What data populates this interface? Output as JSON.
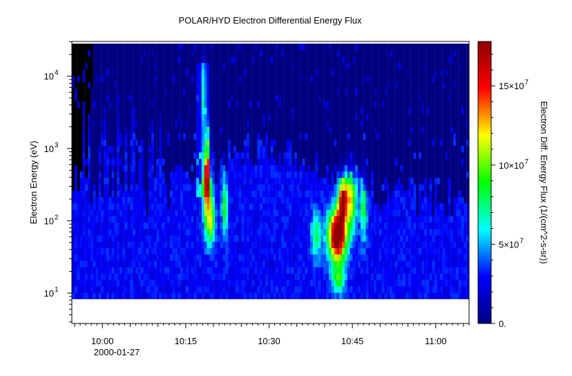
{
  "chart_data": {
    "type": "heatmap",
    "title": "POLAR/HYD  Electron Differential Energy Flux",
    "ylabel": "Electron Energy (eV)",
    "colorbar_label": "Electron Diff. Energy Flux (1/(cm^2-s-sr))",
    "xlabel": "",
    "x_date_label": "2000-01-27",
    "x_ticks": [
      "10:00",
      "10:15",
      "10:30",
      "10:45",
      "11:00"
    ],
    "x_tick_minutes": [
      0,
      15,
      30,
      45,
      60
    ],
    "x_range_minutes": [
      -5.5,
      66.0
    ],
    "y_scale": "log",
    "y_ticks": [
      {
        "value": 10,
        "base": "10",
        "exp": "1"
      },
      {
        "value": 100,
        "base": "10",
        "exp": "2"
      },
      {
        "value": 1000,
        "base": "10",
        "exp": "3"
      },
      {
        "value": 10000,
        "base": "10",
        "exp": "4"
      }
    ],
    "y_range_log10": [
      0.58,
      4.48
    ],
    "data_energy_range_log10": [
      0.92,
      4.45
    ],
    "colorbar_ticks": [
      {
        "value": 0,
        "label": "0."
      },
      {
        "value": 50000000,
        "label": "5×10",
        "exp": "7"
      },
      {
        "value": 100000000,
        "label": "10×10",
        "exp": "7"
      },
      {
        "value": 150000000,
        "label": "15×10",
        "exp": "7"
      }
    ],
    "colorbar_range": [
      0,
      178000000
    ],
    "colormap": [
      "#000080",
      "#0000ff",
      "#00ffff",
      "#00ff00",
      "#ffff00",
      "#ff0000",
      "#8b0000"
    ],
    "features": [
      {
        "time_minutes": 18.8,
        "energy_log10": 2.55,
        "peak_flux": 120000000,
        "half_width_minutes": 0.7,
        "energy_spread_log10": 0.55
      },
      {
        "time_minutes": 19.5,
        "energy_log10": 2.0,
        "peak_flux": 70000000,
        "half_width_minutes": 0.8,
        "energy_spread_log10": 0.35
      },
      {
        "time_minutes": 18.2,
        "energy_log10": 3.8,
        "peak_flux": 45000000,
        "half_width_minutes": 0.4,
        "energy_spread_log10": 0.5
      },
      {
        "time_minutes": 22.0,
        "energy_log10": 2.2,
        "peak_flux": 65000000,
        "half_width_minutes": 0.5,
        "energy_spread_log10": 0.4
      },
      {
        "time_minutes": 38.5,
        "energy_log10": 1.8,
        "peak_flux": 55000000,
        "half_width_minutes": 0.9,
        "energy_spread_log10": 0.3
      },
      {
        "time_minutes": 42.3,
        "energy_log10": 1.8,
        "peak_flux": 178000000,
        "half_width_minutes": 1.6,
        "energy_spread_log10": 0.35
      },
      {
        "time_minutes": 43.3,
        "energy_log10": 2.3,
        "peak_flux": 140000000,
        "half_width_minutes": 0.8,
        "energy_spread_log10": 0.3
      },
      {
        "time_minutes": 44.8,
        "energy_log10": 2.3,
        "peak_flux": 90000000,
        "half_width_minutes": 0.9,
        "energy_spread_log10": 0.4
      },
      {
        "time_minutes": 47.0,
        "energy_log10": 2.2,
        "peak_flux": 60000000,
        "half_width_minutes": 0.6,
        "energy_spread_log10": 0.45
      },
      {
        "time_minutes": 42.5,
        "energy_log10": 1.2,
        "peak_flux": 55000000,
        "half_width_minutes": 1.2,
        "energy_spread_log10": 0.2
      }
    ]
  }
}
